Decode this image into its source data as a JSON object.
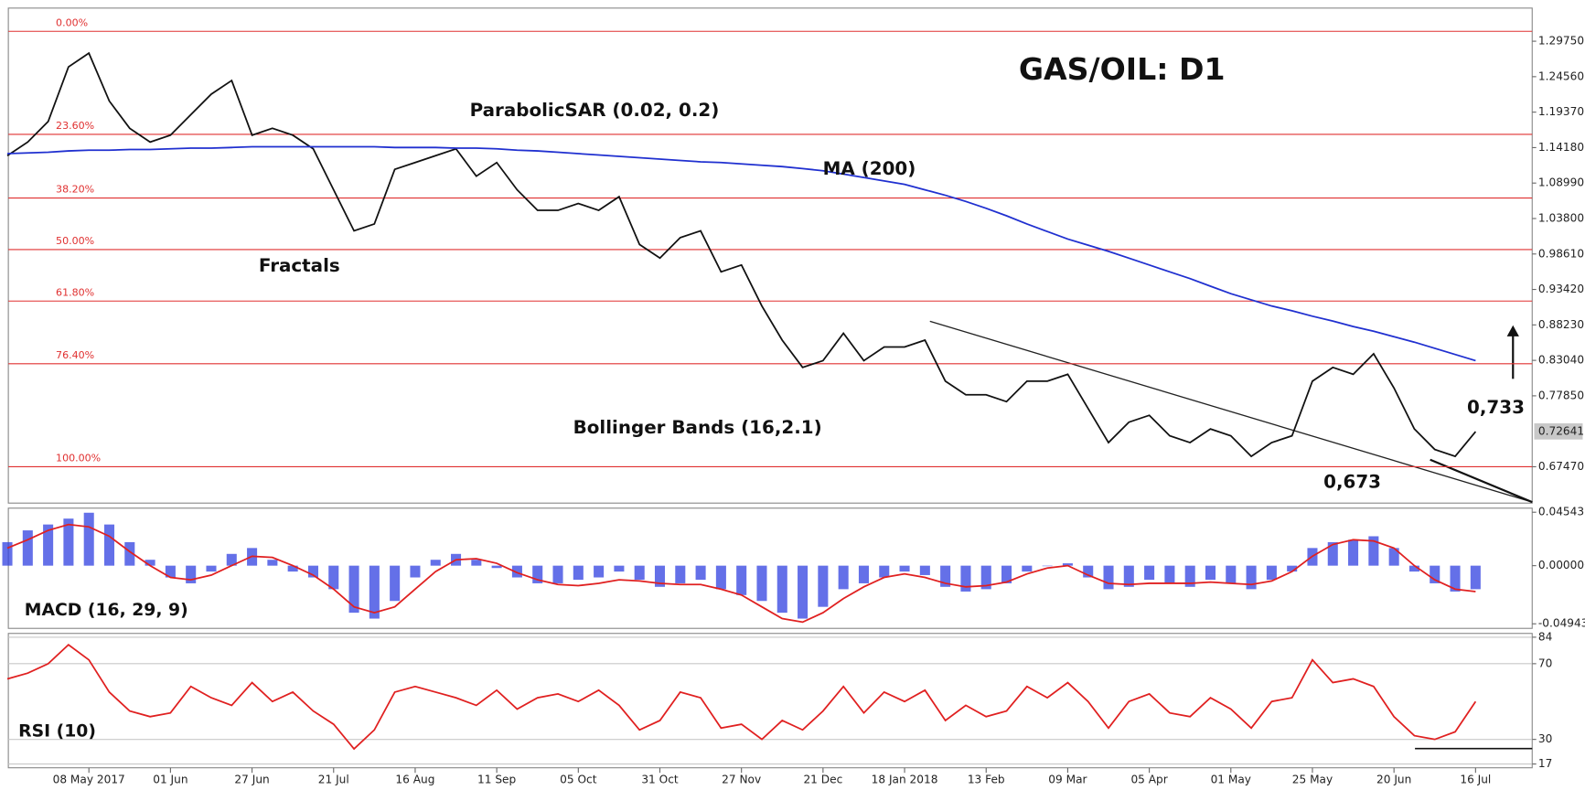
{
  "chart_data": [
    {
      "type": "price",
      "title": "GAS/OIL: D1",
      "annotations": [
        "ParabolicSAR (0.02, 0.2)",
        "MA (200)",
        "Fractals",
        "Bollinger Bands (16,2.1)",
        "0,733",
        "0,673"
      ],
      "ylim": [
        0.6215,
        1.346
      ],
      "yticks": [
        {
          "value": 1.2975,
          "label": "1.29750"
        },
        {
          "value": 1.2456,
          "label": "1.24560"
        },
        {
          "value": 1.1937,
          "label": "1.19370"
        },
        {
          "value": 1.1418,
          "label": "1.14180"
        },
        {
          "value": 1.0899,
          "label": "1.08990"
        },
        {
          "value": 1.038,
          "label": "1.03800"
        },
        {
          "value": 0.9861,
          "label": "0.98610"
        },
        {
          "value": 0.9342,
          "label": "0.93420"
        },
        {
          "value": 0.8823,
          "label": "0.88230"
        },
        {
          "value": 0.8304,
          "label": "0.83040"
        },
        {
          "value": 0.7785,
          "label": "0.77850"
        },
        {
          "value": 0.6747,
          "label": "0.67470"
        }
      ],
      "last_price": {
        "value": 0.72641,
        "label": "0.72641"
      },
      "fib_levels": [
        {
          "label": "0.00%",
          "value": 1.312
        },
        {
          "label": "23.60%",
          "value": 1.1612
        },
        {
          "label": "38.20%",
          "value": 1.068
        },
        {
          "label": "50.00%",
          "value": 0.9926
        },
        {
          "label": "61.80%",
          "value": 0.9172
        },
        {
          "label": "76.40%",
          "value": 0.8255
        },
        {
          "label": "100.00%",
          "value": 0.6747
        }
      ],
      "fib_color": "#e03030",
      "series": [
        {
          "style": "line",
          "color": "#111111",
          "values": [
            1.13,
            1.15,
            1.18,
            1.26,
            1.28,
            1.21,
            1.17,
            1.15,
            1.16,
            1.19,
            1.22,
            1.24,
            1.16,
            1.17,
            1.16,
            1.14,
            1.08,
            1.02,
            1.03,
            1.11,
            1.12,
            1.13,
            1.14,
            1.1,
            1.12,
            1.08,
            1.05,
            1.05,
            1.06,
            1.05,
            1.07,
            1.0,
            0.98,
            1.01,
            1.02,
            0.96,
            0.97,
            0.91,
            0.86,
            0.82,
            0.83,
            0.87,
            0.83,
            0.85,
            0.85,
            0.86,
            0.8,
            0.78,
            0.78,
            0.77,
            0.8,
            0.8,
            0.81,
            0.76,
            0.71,
            0.74,
            0.75,
            0.72,
            0.71,
            0.73,
            0.72,
            0.69,
            0.71,
            0.72,
            0.8,
            0.82,
            0.81,
            0.84,
            0.79,
            0.73,
            0.7,
            0.69,
            0.726
          ]
        },
        {
          "style": "line",
          "color": "#2030d0",
          "values": [
            1.133,
            1.134,
            1.135,
            1.137,
            1.138,
            1.138,
            1.139,
            1.139,
            1.14,
            1.141,
            1.141,
            1.142,
            1.143,
            1.143,
            1.143,
            1.143,
            1.143,
            1.143,
            1.143,
            1.142,
            1.142,
            1.142,
            1.141,
            1.141,
            1.14,
            1.138,
            1.137,
            1.135,
            1.133,
            1.131,
            1.129,
            1.127,
            1.125,
            1.123,
            1.121,
            1.12,
            1.118,
            1.116,
            1.114,
            1.111,
            1.108,
            1.103,
            1.098,
            1.093,
            1.088,
            1.08,
            1.072,
            1.063,
            1.053,
            1.042,
            1.03,
            1.019,
            1.008,
            0.999,
            0.99,
            0.98,
            0.97,
            0.96,
            0.95,
            0.939,
            0.928,
            0.919,
            0.91,
            0.903,
            0.895,
            0.888,
            0.88,
            0.873,
            0.865,
            0.857,
            0.848,
            0.839,
            0.83
          ]
        }
      ]
    },
    {
      "type": "macd",
      "title": "MACD (16, 29, 9)",
      "ylim": [
        -0.0533,
        0.0489
      ],
      "yticks": [
        0.045432,
        {
          "value": 0,
          "label": "0.000000"
        },
        -0.049434
      ],
      "series": [
        {
          "style": "bar",
          "color": "#3040e0",
          "values": [
            0.02,
            0.03,
            0.035,
            0.04,
            0.045,
            0.035,
            0.02,
            0.005,
            -0.01,
            -0.015,
            -0.005,
            0.01,
            0.015,
            0.005,
            -0.005,
            -0.01,
            -0.02,
            -0.04,
            -0.045,
            -0.03,
            -0.01,
            0.005,
            0.01,
            0.005,
            -0.002,
            -0.01,
            -0.015,
            -0.015,
            -0.012,
            -0.01,
            -0.005,
            -0.012,
            -0.018,
            -0.015,
            -0.012,
            -0.02,
            -0.025,
            -0.03,
            -0.04,
            -0.045,
            -0.035,
            -0.02,
            -0.015,
            -0.01,
            -0.005,
            -0.008,
            -0.018,
            -0.022,
            -0.02,
            -0.015,
            -0.005,
            0.0,
            0.002,
            -0.01,
            -0.02,
            -0.018,
            -0.012,
            -0.015,
            -0.018,
            -0.012,
            -0.015,
            -0.02,
            -0.012,
            -0.005,
            0.015,
            0.02,
            0.022,
            0.025,
            0.015,
            -0.005,
            -0.015,
            -0.022,
            -0.02
          ]
        },
        {
          "style": "line",
          "color": "#e02020",
          "values": [
            0.015,
            0.022,
            0.03,
            0.035,
            0.033,
            0.025,
            0.012,
            0.0,
            -0.01,
            -0.012,
            -0.008,
            0.0,
            0.008,
            0.007,
            0.0,
            -0.008,
            -0.02,
            -0.035,
            -0.04,
            -0.035,
            -0.02,
            -0.005,
            0.005,
            0.006,
            0.002,
            -0.006,
            -0.012,
            -0.016,
            -0.017,
            -0.015,
            -0.012,
            -0.013,
            -0.015,
            -0.016,
            -0.016,
            -0.02,
            -0.025,
            -0.035,
            -0.045,
            -0.048,
            -0.04,
            -0.028,
            -0.018,
            -0.01,
            -0.007,
            -0.01,
            -0.015,
            -0.018,
            -0.017,
            -0.014,
            -0.007,
            -0.002,
            0.0,
            -0.008,
            -0.015,
            -0.016,
            -0.015,
            -0.015,
            -0.015,
            -0.014,
            -0.015,
            -0.016,
            -0.013,
            -0.005,
            0.008,
            0.018,
            0.022,
            0.021,
            0.015,
            0.0,
            -0.012,
            -0.02,
            -0.022
          ]
        }
      ]
    },
    {
      "type": "rsi",
      "title": "RSI (10)",
      "ylim": [
        15,
        86
      ],
      "yticks": [
        84,
        70,
        30,
        17
      ],
      "grid": true,
      "categories": [
        null,
        null,
        null,
        null,
        "08 May 2017",
        null,
        null,
        null,
        "01 Jun",
        null,
        null,
        null,
        "27 Jun",
        null,
        null,
        null,
        "21 Jul",
        null,
        null,
        null,
        "16 Aug",
        null,
        null,
        null,
        "11 Sep",
        null,
        null,
        null,
        "05 Oct",
        null,
        null,
        null,
        "31 Oct",
        null,
        null,
        null,
        "27 Nov",
        null,
        null,
        null,
        "21 Dec",
        null,
        null,
        null,
        "18 Jan 2018",
        null,
        null,
        null,
        "13 Feb",
        null,
        null,
        null,
        "09 Mar",
        null,
        null,
        null,
        "05 Apr",
        null,
        null,
        null,
        "01 May",
        null,
        null,
        null,
        "25 May",
        null,
        null,
        null,
        "20 Jun",
        null,
        null,
        null,
        "16 Jul"
      ],
      "series": [
        {
          "style": "line",
          "color": "#e02020",
          "values": [
            62,
            65,
            70,
            80,
            72,
            55,
            45,
            42,
            44,
            58,
            52,
            48,
            60,
            50,
            55,
            45,
            38,
            25,
            35,
            55,
            58,
            55,
            52,
            48,
            56,
            46,
            52,
            54,
            50,
            56,
            48,
            35,
            40,
            55,
            52,
            36,
            38,
            30,
            40,
            35,
            45,
            58,
            44,
            55,
            50,
            56,
            40,
            48,
            42,
            45,
            58,
            52,
            60,
            50,
            36,
            50,
            54,
            44,
            42,
            52,
            46,
            36,
            50,
            52,
            72,
            60,
            62,
            58,
            42,
            32,
            30,
            34,
            50
          ]
        }
      ]
    }
  ]
}
